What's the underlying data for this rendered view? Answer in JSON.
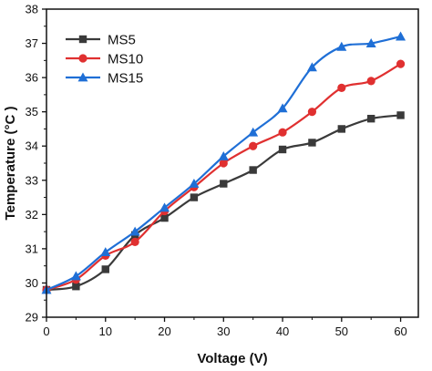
{
  "chart_data": {
    "type": "line",
    "xlabel": "Voltage (V)",
    "ylabel": "Temperature (°C )",
    "xlim": [
      0,
      63
    ],
    "ylim": [
      29,
      38
    ],
    "xticks": [
      0,
      10,
      20,
      30,
      40,
      50,
      60
    ],
    "yticks": [
      29,
      30,
      31,
      32,
      33,
      34,
      35,
      36,
      37,
      38
    ],
    "x": [
      0,
      5,
      10,
      15,
      20,
      25,
      30,
      35,
      40,
      45,
      50,
      55,
      60
    ],
    "grid": false,
    "legend_position": "top-left",
    "series": [
      {
        "name": "MS5",
        "color": "#3a3a3a",
        "marker": "square",
        "values": [
          29.8,
          29.9,
          30.4,
          31.4,
          31.9,
          32.5,
          32.9,
          33.3,
          33.9,
          34.1,
          34.5,
          34.8,
          34.9
        ]
      },
      {
        "name": "MS10",
        "color": "#e03030",
        "marker": "circle",
        "values": [
          29.8,
          30.1,
          30.8,
          31.2,
          32.1,
          32.8,
          33.5,
          34.0,
          34.4,
          35.0,
          35.7,
          35.9,
          36.4
        ]
      },
      {
        "name": "MS15",
        "color": "#1f6fd6",
        "marker": "triangle",
        "values": [
          29.8,
          30.2,
          30.9,
          31.5,
          32.2,
          32.9,
          33.7,
          34.4,
          35.1,
          36.3,
          36.9,
          37.0,
          37.2
        ]
      }
    ]
  }
}
